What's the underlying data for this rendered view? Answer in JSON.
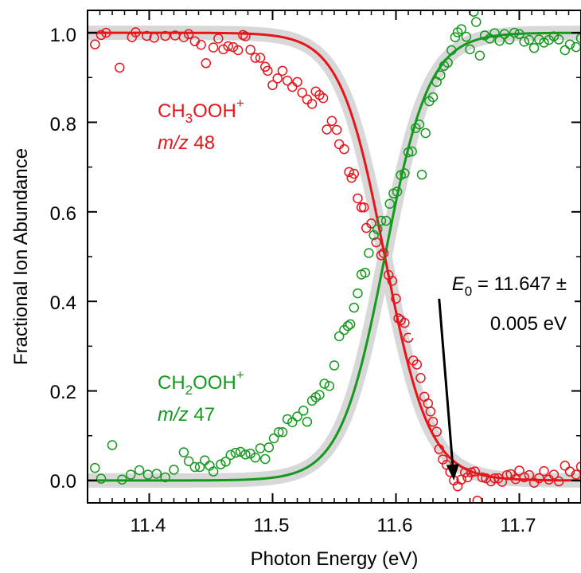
{
  "chart_data": {
    "type": "scatter",
    "xlabel": "Photon Energy (eV)",
    "ylabel": "Fractional Ion Abundance",
    "xlim": [
      11.35,
      11.75
    ],
    "ylim": [
      -0.05,
      1.05
    ],
    "x_ticks": [
      "11.4",
      "11.5",
      "11.6",
      "11.7"
    ],
    "y_ticks": [
      "0.0",
      "0.2",
      "0.4",
      "0.6",
      "0.8",
      "1.0"
    ],
    "x_tick_values": [
      11.4,
      11.5,
      11.6,
      11.7
    ],
    "y_tick_values": [
      0.0,
      0.2,
      0.4,
      0.6,
      0.8,
      1.0
    ],
    "grid": false,
    "colors": {
      "red": "#e8141b",
      "green": "#14991e",
      "band": "#d8d8d8",
      "arrow": "#000000"
    },
    "labels": {
      "red_formula": {
        "base1": "CH",
        "sub": "3",
        "base2": "OOH",
        "sup": "+"
      },
      "red_mz": {
        "italic": "m/z",
        "value": "48"
      },
      "green_formula": {
        "base1": "CH",
        "sub": "2",
        "base2": "OOH",
        "sup": "+"
      },
      "green_mz": {
        "italic": "m/z",
        "value": "47"
      },
      "annotation": {
        "symbol": "E",
        "sub": "0",
        "line1_rest": "= 11.647 ±",
        "line2": "0.005 eV"
      }
    },
    "arrow": {
      "from": [
        11.635,
        0.406
      ],
      "to": [
        11.647,
        0.0
      ]
    },
    "series": [
      {
        "color": "red",
        "points": [
          [
            11.356,
            0.974
          ],
          [
            11.361,
            0.995
          ],
          [
            11.365,
            1.0
          ],
          [
            11.376,
            0.922
          ],
          [
            11.386,
            0.99
          ],
          [
            11.389,
            1.001
          ],
          [
            11.398,
            0.993
          ],
          [
            11.404,
            0.989
          ],
          [
            11.413,
            0.993
          ],
          [
            11.421,
            0.994
          ],
          [
            11.428,
            0.99
          ],
          [
            11.432,
            0.997
          ],
          [
            11.437,
            0.981
          ],
          [
            11.442,
            0.973
          ],
          [
            11.446,
            0.932
          ],
          [
            11.452,
            0.967
          ],
          [
            11.456,
            0.987
          ],
          [
            11.46,
            0.963
          ],
          [
            11.464,
            0.97
          ],
          [
            11.468,
            0.968
          ],
          [
            11.472,
            0.961
          ],
          [
            11.476,
            0.995
          ],
          [
            11.478,
            0.992
          ],
          [
            11.482,
            0.962
          ],
          [
            11.486,
            0.944
          ],
          [
            11.49,
            0.944
          ],
          [
            11.494,
            0.924
          ],
          [
            11.496,
            0.915
          ],
          [
            11.5,
            0.883
          ],
          [
            11.504,
            0.898
          ],
          [
            11.508,
            0.915
          ],
          [
            11.512,
            0.893
          ],
          [
            11.516,
            0.879
          ],
          [
            11.52,
            0.89
          ],
          [
            11.524,
            0.866
          ],
          [
            11.528,
            0.851
          ],
          [
            11.532,
            0.841
          ],
          [
            11.535,
            0.869
          ],
          [
            11.538,
            0.861
          ],
          [
            11.541,
            0.854
          ],
          [
            11.544,
            0.784
          ],
          [
            11.548,
            0.803
          ],
          [
            11.552,
            0.783
          ],
          [
            11.554,
            0.751
          ],
          [
            11.558,
            0.74
          ],
          [
            11.562,
            0.689
          ],
          [
            11.564,
            0.676
          ],
          [
            11.566,
            0.685
          ],
          [
            11.569,
            0.63
          ],
          [
            11.572,
            0.61
          ],
          [
            11.574,
            0.61
          ],
          [
            11.576,
            0.564
          ],
          [
            11.58,
            0.574
          ],
          [
            11.584,
            0.532
          ],
          [
            11.588,
            0.503
          ],
          [
            11.59,
            0.508
          ],
          [
            11.594,
            0.459
          ],
          [
            11.597,
            0.446
          ],
          [
            11.6,
            0.406
          ],
          [
            11.602,
            0.362
          ],
          [
            11.604,
            0.358
          ],
          [
            11.607,
            0.352
          ],
          [
            11.61,
            0.319
          ],
          [
            11.614,
            0.268
          ],
          [
            11.617,
            0.259
          ],
          [
            11.62,
            0.229
          ],
          [
            11.623,
            0.187
          ],
          [
            11.626,
            0.172
          ],
          [
            11.628,
            0.154
          ],
          [
            11.63,
            0.131
          ],
          [
            11.633,
            0.109
          ],
          [
            11.635,
            0.07
          ],
          [
            11.638,
            0.047
          ],
          [
            11.641,
            0.035
          ],
          [
            11.644,
            0.019
          ],
          [
            11.647,
            0.0
          ],
          [
            11.65,
            -0.013
          ],
          [
            11.653,
            0.002
          ],
          [
            11.656,
            0.018
          ],
          [
            11.658,
            0.007
          ],
          [
            11.661,
            0.018
          ],
          [
            11.664,
            0.02
          ],
          [
            11.666,
            -0.045
          ],
          [
            11.67,
            0.007
          ],
          [
            11.673,
            0.005
          ],
          [
            11.677,
            -0.002
          ],
          [
            11.68,
            0.005
          ],
          [
            11.683,
            0.005
          ],
          [
            11.686,
            -0.003
          ],
          [
            11.69,
            0.012
          ],
          [
            11.693,
            0.014
          ],
          [
            11.697,
            0.003
          ],
          [
            11.7,
            0.022
          ],
          [
            11.704,
            0.007
          ],
          [
            11.708,
            0.012
          ],
          [
            11.712,
            -0.005
          ],
          [
            11.716,
            0.005
          ],
          [
            11.72,
            0.021
          ],
          [
            11.724,
            0.002
          ],
          [
            11.728,
            0.013
          ],
          [
            11.732,
            -0.002
          ],
          [
            11.737,
            0.033
          ],
          [
            11.741,
            0.02
          ],
          [
            11.746,
            0.013
          ],
          [
            11.75,
            0.031
          ]
        ]
      },
      {
        "color": "green",
        "points": [
          [
            11.356,
            0.028
          ],
          [
            11.361,
            0.004
          ],
          [
            11.37,
            0.079
          ],
          [
            11.378,
            0.002
          ],
          [
            11.385,
            0.013
          ],
          [
            11.392,
            0.023
          ],
          [
            11.399,
            0.013
          ],
          [
            11.406,
            0.015
          ],
          [
            11.413,
            0.007
          ],
          [
            11.42,
            0.024
          ],
          [
            11.428,
            0.063
          ],
          [
            11.432,
            0.043
          ],
          [
            11.437,
            0.03
          ],
          [
            11.441,
            0.03
          ],
          [
            11.445,
            0.045
          ],
          [
            11.449,
            0.033
          ],
          [
            11.452,
            0.02
          ],
          [
            11.458,
            0.036
          ],
          [
            11.462,
            0.042
          ],
          [
            11.466,
            0.057
          ],
          [
            11.47,
            0.062
          ],
          [
            11.474,
            0.064
          ],
          [
            11.478,
            0.058
          ],
          [
            11.482,
            0.06
          ],
          [
            11.486,
            0.051
          ],
          [
            11.49,
            0.072
          ],
          [
            11.494,
            0.048
          ],
          [
            11.497,
            0.074
          ],
          [
            11.501,
            0.094
          ],
          [
            11.505,
            0.108
          ],
          [
            11.508,
            0.108
          ],
          [
            11.512,
            0.137
          ],
          [
            11.516,
            0.13
          ],
          [
            11.52,
            0.143
          ],
          [
            11.525,
            0.156
          ],
          [
            11.528,
            0.131
          ],
          [
            11.532,
            0.178
          ],
          [
            11.535,
            0.186
          ],
          [
            11.538,
            0.191
          ],
          [
            11.542,
            0.216
          ],
          [
            11.546,
            0.211
          ],
          [
            11.55,
            0.257
          ],
          [
            11.554,
            0.322
          ],
          [
            11.558,
            0.336
          ],
          [
            11.561,
            0.345
          ],
          [
            11.563,
            0.349
          ],
          [
            11.566,
            0.386
          ],
          [
            11.569,
            0.418
          ],
          [
            11.572,
            0.46
          ],
          [
            11.575,
            0.464
          ],
          [
            11.578,
            0.508
          ],
          [
            11.582,
            0.548
          ],
          [
            11.585,
            0.561
          ],
          [
            11.588,
            0.58
          ],
          [
            11.592,
            0.58
          ],
          [
            11.595,
            0.618
          ],
          [
            11.598,
            0.641
          ],
          [
            11.601,
            0.645
          ],
          [
            11.604,
            0.682
          ],
          [
            11.607,
            0.686
          ],
          [
            11.61,
            0.733
          ],
          [
            11.613,
            0.735
          ],
          [
            11.616,
            0.787
          ],
          [
            11.619,
            0.795
          ],
          [
            11.621,
            0.683
          ],
          [
            11.624,
            0.776
          ],
          [
            11.627,
            0.847
          ],
          [
            11.63,
            0.856
          ],
          [
            11.633,
            0.89
          ],
          [
            11.636,
            0.905
          ],
          [
            11.639,
            0.926
          ],
          [
            11.642,
            0.933
          ],
          [
            11.645,
            0.961
          ],
          [
            11.648,
            0.99
          ],
          [
            11.65,
            1.001
          ],
          [
            11.653,
            1.008
          ],
          [
            11.657,
            0.991
          ],
          [
            11.66,
            0.963
          ],
          [
            11.663,
            1.047
          ],
          [
            11.665,
            1.024
          ],
          [
            11.668,
            0.949
          ],
          [
            11.672,
            0.994
          ],
          [
            11.676,
            0.987
          ],
          [
            11.68,
            0.999
          ],
          [
            11.684,
            0.982
          ],
          [
            11.688,
            0.997
          ],
          [
            11.692,
            0.985
          ],
          [
            11.696,
            1.0
          ],
          [
            11.7,
            0.997
          ],
          [
            11.704,
            0.98
          ],
          [
            11.708,
            0.984
          ],
          [
            11.712,
            0.966
          ],
          [
            11.716,
            0.985
          ],
          [
            11.72,
            0.978
          ],
          [
            11.724,
            0.984
          ],
          [
            11.728,
            0.992
          ],
          [
            11.732,
            0.985
          ],
          [
            11.737,
            0.961
          ],
          [
            11.741,
            0.974
          ],
          [
            11.746,
            0.968
          ],
          [
            11.75,
            0.988
          ]
        ]
      }
    ],
    "fit": {
      "red": "1 - sigmoid",
      "green": "sigmoid",
      "center": 11.591,
      "width": 0.018
    }
  }
}
